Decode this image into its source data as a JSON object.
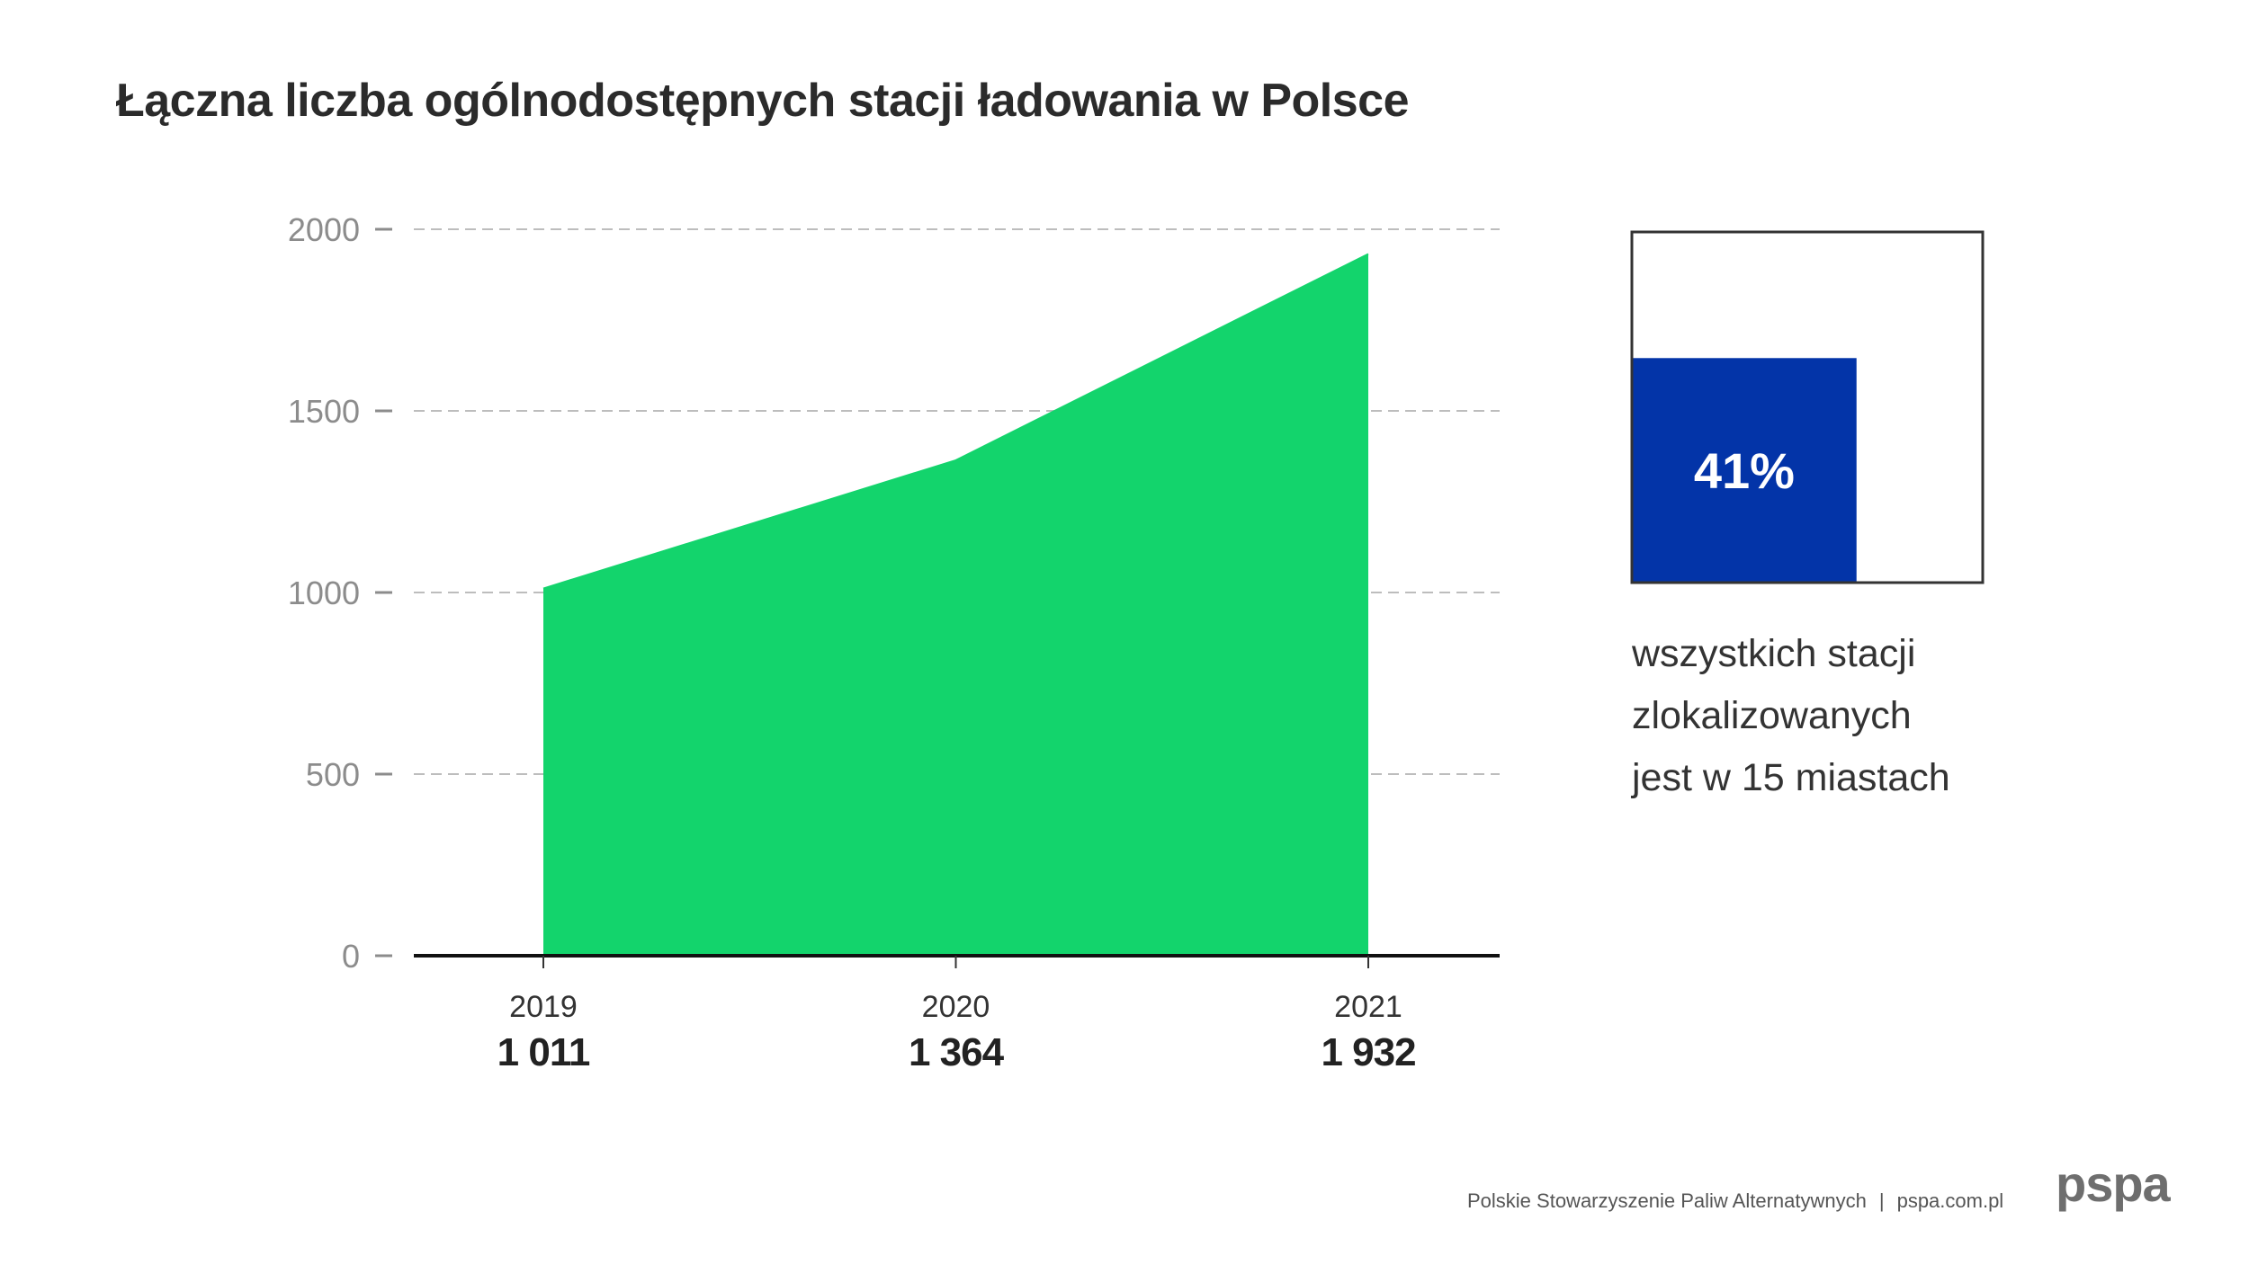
{
  "chart_data": {
    "type": "area",
    "title": "Łączna liczba ogólnodostępnych stacji ładowania w Polsce",
    "categories": [
      "2019",
      "2020",
      "2021"
    ],
    "values": [
      1011,
      1364,
      1932
    ],
    "data_labels": [
      "1 011",
      "1 364",
      "1 932"
    ],
    "ylim": [
      0,
      2000
    ],
    "yticks": [
      0,
      500,
      1000,
      1500,
      2000
    ],
    "grid": true,
    "color": "#13d46c"
  },
  "highlight": {
    "percent_label": "41%",
    "percent_value": 0.41,
    "fill_color": "#0334a8",
    "description_lines": [
      "wszystkich stacji",
      "zlokalizowanych",
      "jest w 15 miastach"
    ]
  },
  "footer": {
    "organization": "Polskie Stowarzyszenie Paliw Alternatywnych",
    "separator": "|",
    "website": "pspa.com.pl",
    "logo_text": "pspa"
  }
}
